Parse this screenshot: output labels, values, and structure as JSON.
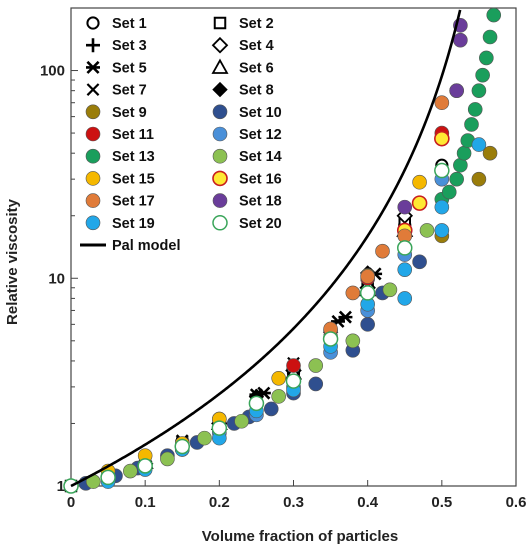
{
  "chart_data": {
    "type": "scatter",
    "title": "",
    "xlabel": "Volume fraction of particles",
    "ylabel": "Relative viscosity",
    "xlim": [
      0,
      0.6
    ],
    "ylim": [
      1,
      200
    ],
    "y_scale": "log",
    "grid": false,
    "legend_position": "top-left, two columns",
    "x_ticks": [
      {
        "v": 0,
        "label": "0"
      },
      {
        "v": 0.1,
        "label": "0.1"
      },
      {
        "v": 0.2,
        "label": "0.2"
      },
      {
        "v": 0.3,
        "label": "0.3"
      },
      {
        "v": 0.4,
        "label": "0.4"
      },
      {
        "v": 0.5,
        "label": "0.5"
      },
      {
        "v": 0.6,
        "label": "0.6"
      }
    ],
    "y_ticks": [
      {
        "v": 1,
        "label": "1"
      },
      {
        "v": 10,
        "label": "10"
      },
      {
        "v": 100,
        "label": "100"
      }
    ],
    "series": [
      {
        "name": "Set 1",
        "marker": "circle-open",
        "color": "#000000",
        "points": [
          [
            0,
            1
          ],
          [
            0.1,
            1.3
          ],
          [
            0.2,
            2.0
          ],
          [
            0.3,
            3.5
          ],
          [
            0.35,
            5.2
          ],
          [
            0.4,
            8.5
          ],
          [
            0.45,
            14
          ],
          [
            0.45,
            18
          ],
          [
            0.5,
            35
          ]
        ]
      },
      {
        "name": "Set 2",
        "marker": "square-open",
        "color": "#000000",
        "points": [
          [
            0,
            1
          ],
          [
            0.05,
            1.1
          ],
          [
            0.15,
            1.6
          ],
          [
            0.25,
            2.6
          ],
          [
            0.35,
            5.0
          ],
          [
            0.4,
            9.5
          ],
          [
            0.45,
            19
          ]
        ]
      },
      {
        "name": "Set 3",
        "marker": "plus",
        "color": "#000000",
        "points": [
          [
            0.05,
            1.12
          ],
          [
            0.1,
            1.3
          ],
          [
            0.15,
            1.6
          ],
          [
            0.2,
            2.05
          ],
          [
            0.25,
            2.7
          ],
          [
            0.3,
            3.7
          ],
          [
            0.35,
            5.3
          ],
          [
            0.4,
            9.8
          ]
        ]
      },
      {
        "name": "Set 4",
        "marker": "diamond-open",
        "color": "#000000",
        "points": [
          [
            0.1,
            1.28
          ],
          [
            0.2,
            2.0
          ],
          [
            0.3,
            3.6
          ],
          [
            0.4,
            9.0
          ],
          [
            0.45,
            20
          ]
        ]
      },
      {
        "name": "Set 5",
        "marker": "star",
        "color": "#000000",
        "points": [
          [
            0.15,
            1.65
          ],
          [
            0.25,
            2.75
          ],
          [
            0.26,
            2.8
          ],
          [
            0.36,
            6.2
          ],
          [
            0.37,
            6.5
          ],
          [
            0.41,
            10.5
          ]
        ]
      },
      {
        "name": "Set 6",
        "marker": "triangle-open",
        "color": "#000000",
        "points": [
          [
            0.1,
            1.3
          ],
          [
            0.2,
            2.0
          ],
          [
            0.3,
            3.5
          ],
          [
            0.4,
            8.8
          ],
          [
            0.45,
            17
          ]
        ]
      },
      {
        "name": "Set 7",
        "marker": "x",
        "color": "#000000",
        "points": [
          [
            0.25,
            2.6
          ],
          [
            0.3,
            3.9
          ],
          [
            0.35,
            5.6
          ],
          [
            0.4,
            10.2
          ]
        ]
      },
      {
        "name": "Set 8",
        "marker": "diamond-filled",
        "color": "#000000",
        "points": [
          [
            0.25,
            2.7
          ],
          [
            0.35,
            5.5
          ],
          [
            0.4,
            10.6
          ]
        ]
      },
      {
        "name": "Set 9",
        "marker": "circle-filled",
        "color": "#9a7d0a",
        "points": [
          [
            0.5,
            16
          ],
          [
            0.55,
            30
          ],
          [
            0.565,
            40
          ]
        ]
      },
      {
        "name": "Set 10",
        "marker": "circle-filled",
        "color": "#2f4f8f",
        "points": [
          [
            0.02,
            1.03
          ],
          [
            0.06,
            1.12
          ],
          [
            0.09,
            1.22
          ],
          [
            0.13,
            1.4
          ],
          [
            0.17,
            1.62
          ],
          [
            0.2,
            1.85
          ],
          [
            0.22,
            2.0
          ],
          [
            0.24,
            2.15
          ],
          [
            0.27,
            2.35
          ],
          [
            0.3,
            2.8
          ],
          [
            0.33,
            3.1
          ],
          [
            0.38,
            4.5
          ],
          [
            0.4,
            6.0
          ],
          [
            0.42,
            8.5
          ],
          [
            0.47,
            12
          ],
          [
            0.52,
            80
          ]
        ]
      },
      {
        "name": "Set 11",
        "marker": "circle-filled",
        "color": "#cc1111",
        "points": [
          [
            0.2,
            2.1
          ],
          [
            0.3,
            3.8
          ],
          [
            0.35,
            5.6
          ],
          [
            0.4,
            10.0
          ],
          [
            0.5,
            50
          ]
        ]
      },
      {
        "name": "Set 12",
        "marker": "circle-filled",
        "color": "#4a90d9",
        "points": [
          [
            0.05,
            1.08
          ],
          [
            0.1,
            1.25
          ],
          [
            0.15,
            1.5
          ],
          [
            0.2,
            1.8
          ],
          [
            0.25,
            2.2
          ],
          [
            0.3,
            3.0
          ],
          [
            0.35,
            4.4
          ],
          [
            0.4,
            7.0
          ],
          [
            0.45,
            13
          ],
          [
            0.5,
            30
          ]
        ]
      },
      {
        "name": "Set 13",
        "marker": "circle-filled",
        "color": "#1a9e5c",
        "points": [
          [
            0.5,
            24
          ],
          [
            0.51,
            26
          ],
          [
            0.52,
            30
          ],
          [
            0.525,
            35
          ],
          [
            0.53,
            40
          ],
          [
            0.535,
            46
          ],
          [
            0.54,
            55
          ],
          [
            0.545,
            65
          ],
          [
            0.55,
            80
          ],
          [
            0.555,
            95
          ],
          [
            0.56,
            115
          ],
          [
            0.565,
            145
          ],
          [
            0.57,
            185
          ]
        ]
      },
      {
        "name": "Set 14",
        "marker": "circle-filled",
        "color": "#8cc152",
        "points": [
          [
            0.03,
            1.05
          ],
          [
            0.08,
            1.18
          ],
          [
            0.13,
            1.35
          ],
          [
            0.18,
            1.7
          ],
          [
            0.23,
            2.05
          ],
          [
            0.28,
            2.7
          ],
          [
            0.33,
            3.8
          ],
          [
            0.38,
            5.0
          ],
          [
            0.43,
            8.8
          ],
          [
            0.48,
            17
          ]
        ]
      },
      {
        "name": "Set 15",
        "marker": "circle-filled",
        "color": "#f5b800",
        "points": [
          [
            0.05,
            1.18
          ],
          [
            0.1,
            1.4
          ],
          [
            0.15,
            1.6
          ],
          [
            0.2,
            2.1
          ],
          [
            0.28,
            3.3
          ],
          [
            0.35,
            5.2
          ],
          [
            0.4,
            10.3
          ],
          [
            0.47,
            29
          ]
        ]
      },
      {
        "name": "Set 16",
        "marker": "circle-yellow-red",
        "color": "#ffe933",
        "points": [
          [
            0.45,
            17
          ],
          [
            0.47,
            23
          ],
          [
            0.5,
            47
          ]
        ]
      },
      {
        "name": "Set 17",
        "marker": "circle-filled",
        "color": "#e07b39",
        "points": [
          [
            0.35,
            5.7
          ],
          [
            0.38,
            8.5
          ],
          [
            0.4,
            10.2
          ],
          [
            0.42,
            13.5
          ],
          [
            0.45,
            16
          ],
          [
            0.5,
            70
          ]
        ]
      },
      {
        "name": "Set 18",
        "marker": "circle-filled",
        "color": "#6a3d9a",
        "points": [
          [
            0.45,
            22
          ],
          [
            0.52,
            80
          ],
          [
            0.525,
            140
          ],
          [
            0.525,
            165
          ]
        ]
      },
      {
        "name": "Set 19",
        "marker": "circle-filled",
        "color": "#22a7e8",
        "points": [
          [
            0.05,
            1.05
          ],
          [
            0.1,
            1.2
          ],
          [
            0.15,
            1.5
          ],
          [
            0.2,
            1.7
          ],
          [
            0.25,
            2.3
          ],
          [
            0.3,
            2.9
          ],
          [
            0.35,
            4.7
          ],
          [
            0.4,
            7.5
          ],
          [
            0.45,
            8.0
          ],
          [
            0.45,
            11
          ],
          [
            0.5,
            17
          ],
          [
            0.5,
            22
          ],
          [
            0.55,
            44
          ]
        ]
      },
      {
        "name": "Set 20",
        "marker": "circle-open-green",
        "color": "#3aa55a",
        "points": [
          [
            0,
            1
          ],
          [
            0.05,
            1.1
          ],
          [
            0.1,
            1.25
          ],
          [
            0.15,
            1.55
          ],
          [
            0.2,
            1.9
          ],
          [
            0.25,
            2.5
          ],
          [
            0.3,
            3.2
          ],
          [
            0.35,
            5.1
          ],
          [
            0.4,
            8.5
          ],
          [
            0.45,
            14
          ],
          [
            0.5,
            33
          ]
        ]
      },
      {
        "name": "Pal model",
        "marker": "line",
        "color": "#000000",
        "points": []
      }
    ],
    "model": {
      "name": "Pal model",
      "type": "line",
      "phi_max": 0.597,
      "exponent": 2.5
    }
  }
}
